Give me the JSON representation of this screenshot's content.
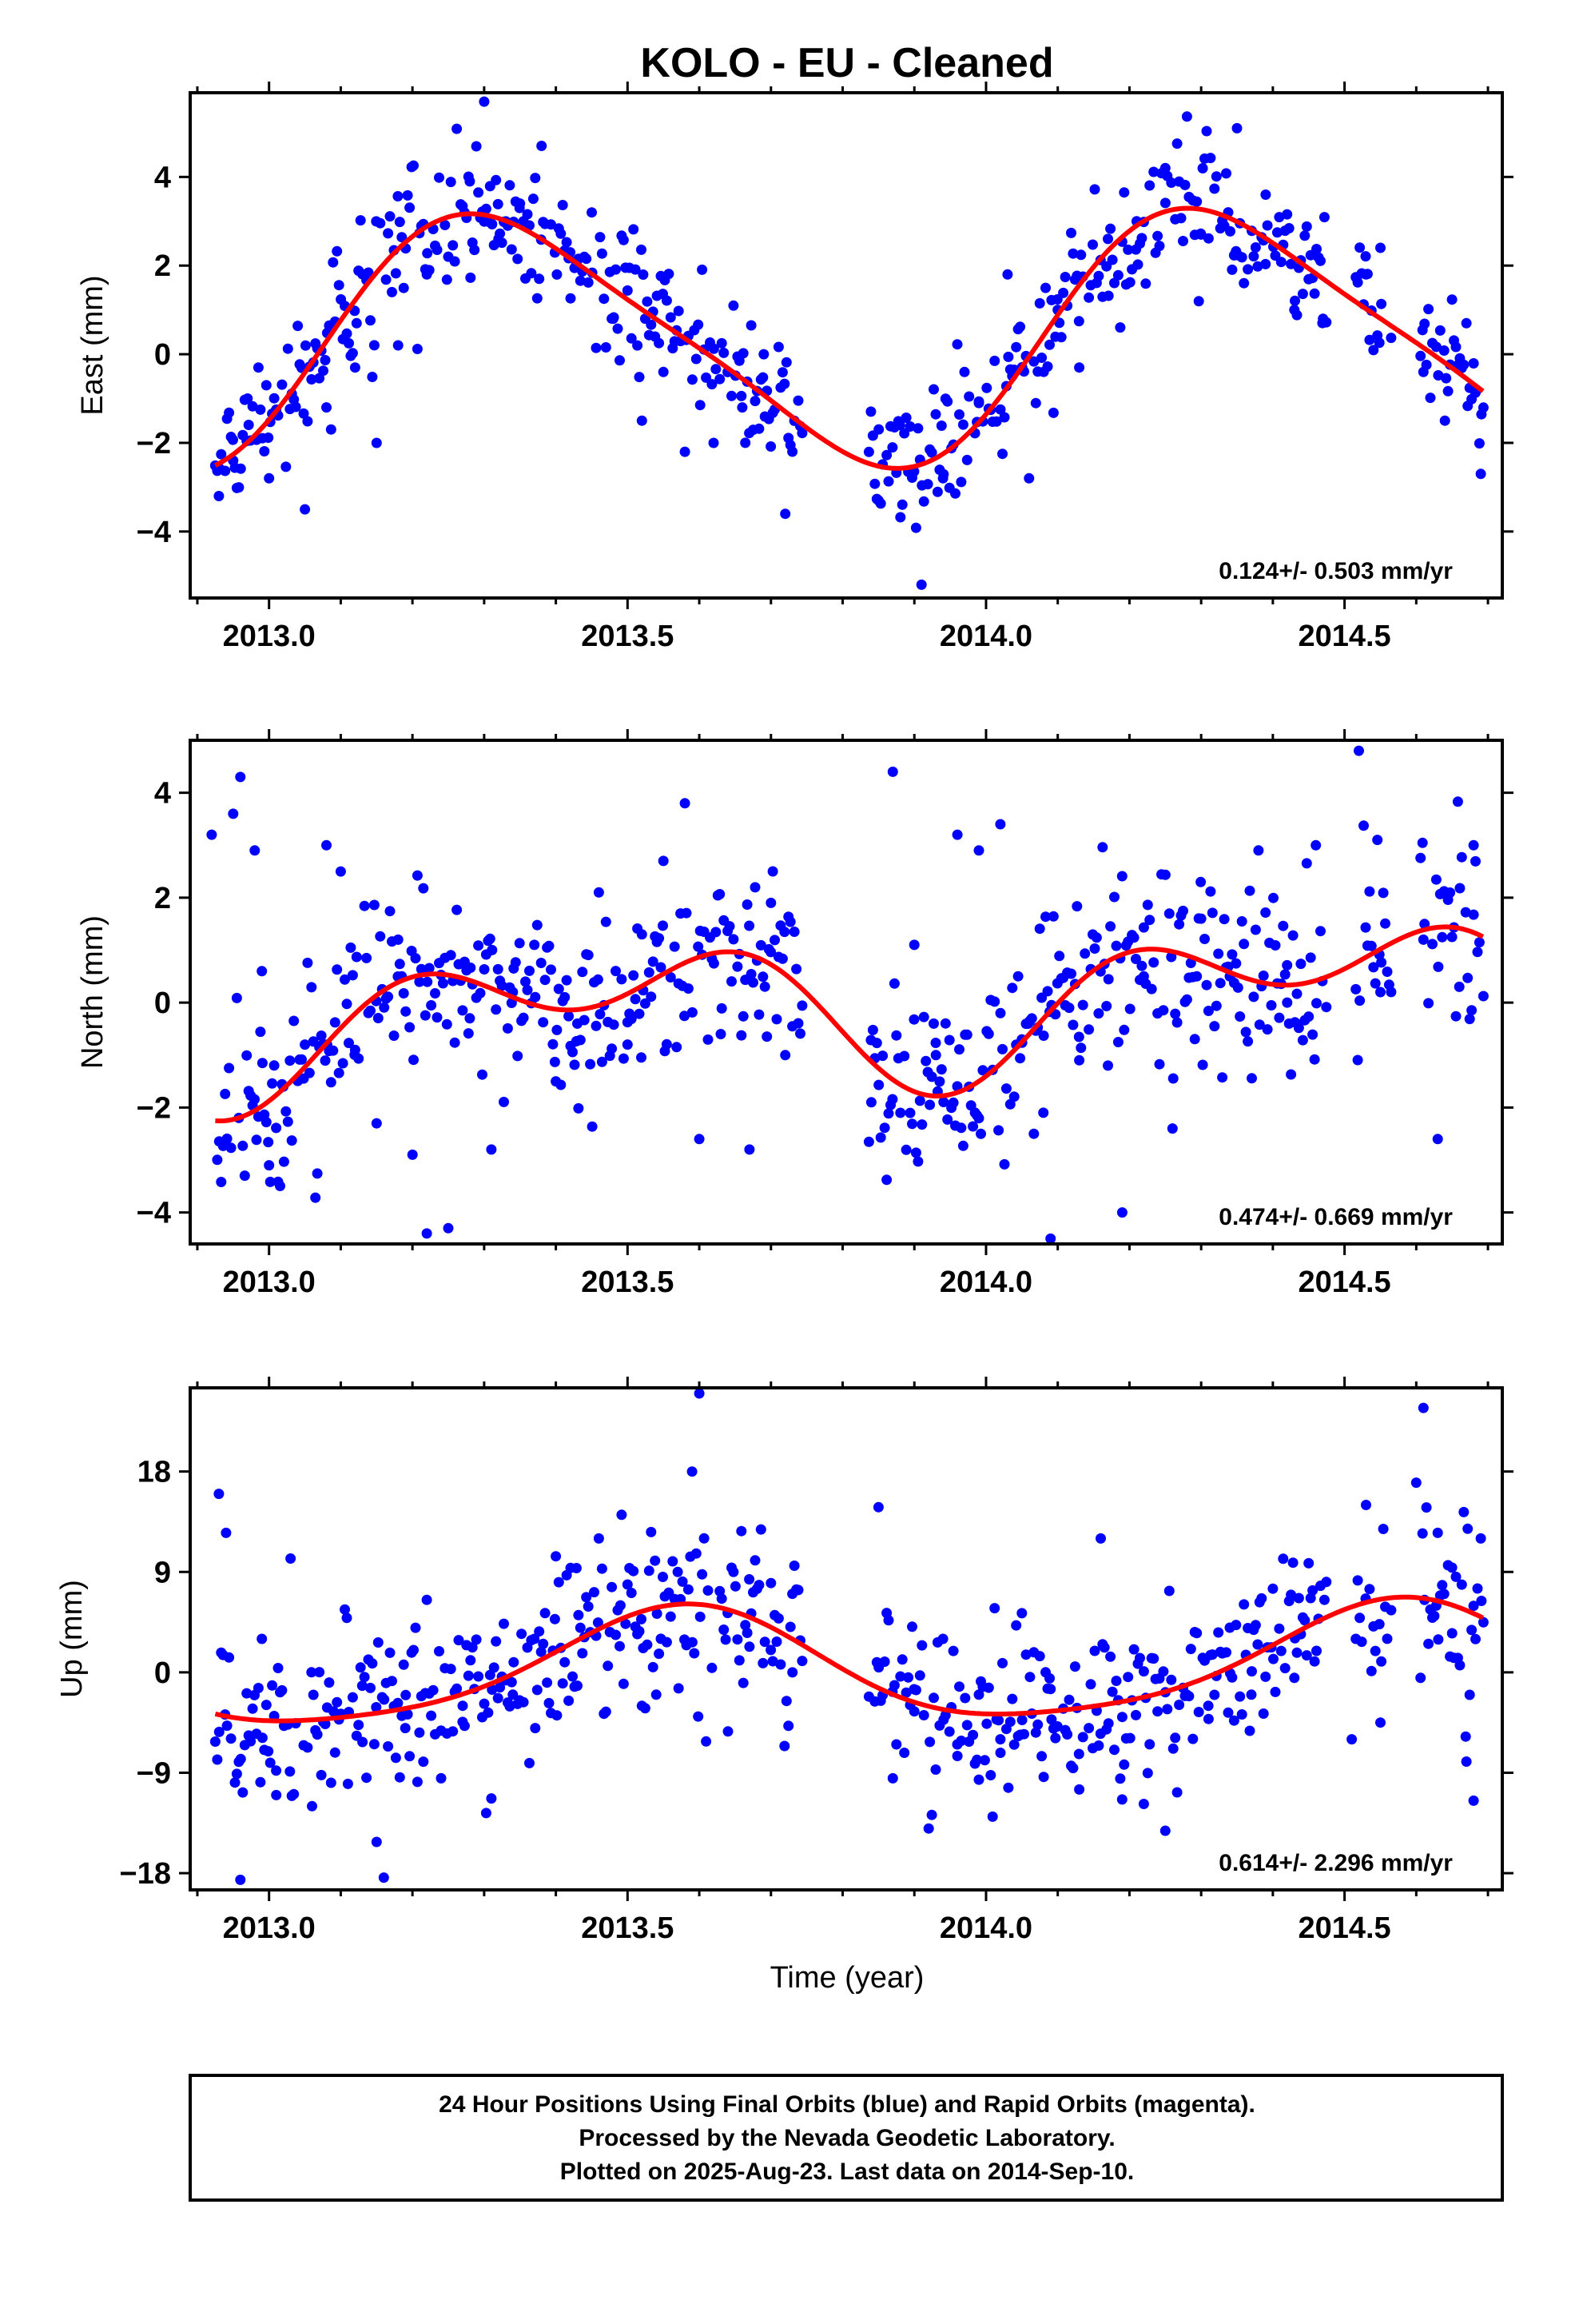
{
  "chart_data": {
    "type": "scatter",
    "title": "KOLO  - EU - Cleaned",
    "xlabel": "Time (year)",
    "xlim": [
      2012.89,
      2014.72
    ],
    "xticks": [
      2013.0,
      2013.5,
      2014.0,
      2014.5
    ],
    "xtick_labels": [
      "2013.0",
      "2013.5",
      "2014.0",
      "2014.5"
    ],
    "series_colors": {
      "data": "#0000ff",
      "fit": "#ff0000"
    },
    "panels": [
      {
        "ylabel": "East (mm)",
        "ylim": [
          -5.5,
          5.9
        ],
        "yticks": [
          4,
          2,
          0,
          -2,
          -4
        ],
        "ytick_labels": [
          "4",
          "2",
          "0",
          "−2",
          "−4"
        ],
        "rate_text": "0.124+/- 0.503 mm/yr",
        "fit": {
          "offset": 0.35,
          "slope": 0.124,
          "t0": 2013.8,
          "amp1": 2.75,
          "peak1": 2013.33,
          "amp2": 0.5,
          "phase2": 2013.2
        },
        "noise": 0.75,
        "scatter": [
          [
            2012.93,
            -3.2
          ],
          [
            2012.95,
            -2.4
          ],
          [
            2012.97,
            -1.0
          ],
          [
            2013.0,
            -2.8
          ],
          [
            2013.05,
            -3.5
          ],
          [
            2013.08,
            -1.2
          ],
          [
            2013.12,
            -0.3
          ],
          [
            2013.15,
            -2.0
          ],
          [
            2013.18,
            0.2
          ],
          [
            2013.22,
            1.8
          ],
          [
            2013.25,
            2.2
          ],
          [
            2013.28,
            3.9
          ],
          [
            2013.3,
            5.7
          ],
          [
            2013.32,
            2.6
          ],
          [
            2013.35,
            3.4
          ],
          [
            2013.38,
            4.7
          ],
          [
            2013.42,
            2.3
          ],
          [
            2013.45,
            3.2
          ],
          [
            2013.48,
            0.8
          ],
          [
            2013.52,
            -1.5
          ],
          [
            2013.55,
            -0.4
          ],
          [
            2013.58,
            -2.2
          ],
          [
            2013.62,
            -2.0
          ],
          [
            2013.66,
            -1.2
          ],
          [
            2013.69,
            0.0
          ],
          [
            2013.72,
            -3.6
          ],
          [
            2013.85,
            -3.3
          ],
          [
            2013.88,
            -1.6
          ],
          [
            2013.91,
            -5.2
          ],
          [
            2013.94,
            -2.8
          ],
          [
            2013.97,
            -0.4
          ],
          [
            2013.99,
            -1.1
          ],
          [
            2014.03,
            1.8
          ],
          [
            2014.06,
            -2.8
          ],
          [
            2014.1,
            1.0
          ],
          [
            2014.13,
            -0.3
          ],
          [
            2014.17,
            2.6
          ],
          [
            2014.21,
            3.0
          ],
          [
            2014.25,
            4.2
          ],
          [
            2014.3,
            2.7
          ],
          [
            2014.35,
            5.1
          ],
          [
            2014.39,
            3.6
          ],
          [
            2014.43,
            1.0
          ],
          [
            2014.47,
            0.8
          ],
          [
            2014.53,
            1.8
          ],
          [
            2014.55,
            2.4
          ],
          [
            2014.61,
            -0.4
          ],
          [
            2014.64,
            -1.5
          ],
          [
            2014.67,
            0.7
          ],
          [
            2014.69,
            -2.7
          ]
        ]
      },
      {
        "ylabel": "North (mm)",
        "ylim": [
          -4.6,
          5.0
        ],
        "yticks": [
          4,
          2,
          0,
          -2,
          -4
        ],
        "ytick_labels": [
          "4",
          "2",
          "0",
          "−2",
          "−4"
        ],
        "rate_text": "0.474+/- 0.669 mm/yr",
        "fit": {
          "offset": -0.05,
          "slope": 0.474,
          "t0": 2013.8,
          "amp1": 0.95,
          "peak1": 2013.45,
          "amp2": 0.85,
          "phase2": 2013.18
        },
        "noise": 0.9,
        "scatter": [
          [
            2012.92,
            3.2
          ],
          [
            2012.95,
            3.6
          ],
          [
            2012.96,
            4.3
          ],
          [
            2012.98,
            2.9
          ],
          [
            2012.99,
            0.6
          ],
          [
            2013.0,
            -3.1
          ],
          [
            2013.02,
            -1.6
          ],
          [
            2013.05,
            -0.8
          ],
          [
            2013.08,
            3.0
          ],
          [
            2013.1,
            2.5
          ],
          [
            2013.12,
            -0.9
          ],
          [
            2013.15,
            -2.3
          ],
          [
            2013.18,
            1.2
          ],
          [
            2013.2,
            -2.9
          ],
          [
            2013.22,
            -4.4
          ],
          [
            2013.25,
            -4.3
          ],
          [
            2013.28,
            -0.3
          ],
          [
            2013.31,
            -2.8
          ],
          [
            2013.34,
            0.2
          ],
          [
            2013.37,
            1.1
          ],
          [
            2013.4,
            -1.5
          ],
          [
            2013.43,
            -0.4
          ],
          [
            2013.46,
            2.1
          ],
          [
            2013.5,
            -0.8
          ],
          [
            2013.52,
            1.3
          ],
          [
            2013.55,
            2.7
          ],
          [
            2013.58,
            3.8
          ],
          [
            2013.6,
            -2.6
          ],
          [
            2013.63,
            -0.6
          ],
          [
            2013.67,
            -2.8
          ],
          [
            2013.7,
            1.9
          ],
          [
            2013.72,
            -1.0
          ],
          [
            2013.84,
            -1.9
          ],
          [
            2013.87,
            4.4
          ],
          [
            2013.9,
            1.1
          ],
          [
            2013.93,
            -1.0
          ],
          [
            2013.96,
            3.2
          ],
          [
            2013.99,
            2.9
          ],
          [
            2014.02,
            3.4
          ],
          [
            2014.05,
            -0.7
          ],
          [
            2014.08,
            -2.1
          ],
          [
            2014.09,
            -4.5
          ],
          [
            2014.13,
            -1.1
          ],
          [
            2014.17,
            -1.2
          ],
          [
            2014.19,
            -4.0
          ],
          [
            2014.22,
            0.5
          ],
          [
            2014.26,
            -2.4
          ],
          [
            2014.3,
            1.6
          ],
          [
            2014.34,
            0.5
          ],
          [
            2014.38,
            2.9
          ],
          [
            2014.42,
            0.0
          ],
          [
            2014.46,
            3.0
          ],
          [
            2014.52,
            4.8
          ],
          [
            2014.55,
            0.2
          ],
          [
            2014.61,
            1.2
          ],
          [
            2014.63,
            -2.6
          ],
          [
            2014.66,
            0.3
          ],
          [
            2014.68,
            3.0
          ]
        ]
      },
      {
        "ylabel": "Up (mm)",
        "ylim": [
          -19.5,
          25.5
        ],
        "yticks": [
          18,
          9,
          0,
          -9,
          -18
        ],
        "ytick_labels": [
          "18",
          "9",
          "0",
          "−9",
          "−18"
        ],
        "rate_text": "0.614+/- 2.296 mm/yr",
        "fit": {
          "offset": 0.4,
          "slope": 0.614,
          "t0": 2013.8,
          "amp1": 5.0,
          "peak1": 2013.57,
          "amp2": 0.9,
          "phase2": 2013.1
        },
        "noise": 4.0,
        "scatter": [
          [
            2012.93,
            16.0
          ],
          [
            2012.94,
            12.5
          ],
          [
            2012.96,
            -18.6
          ],
          [
            2012.99,
            3.0
          ],
          [
            2013.01,
            -11.0
          ],
          [
            2013.03,
            10.2
          ],
          [
            2013.06,
            -12.0
          ],
          [
            2013.09,
            -3.5
          ],
          [
            2013.11,
            -10.0
          ],
          [
            2013.13,
            -1.2
          ],
          [
            2013.15,
            -15.2
          ],
          [
            2013.16,
            -18.4
          ],
          [
            2013.19,
            -5.0
          ],
          [
            2013.22,
            6.5
          ],
          [
            2013.24,
            -9.5
          ],
          [
            2013.27,
            -3.0
          ],
          [
            2013.31,
            -11.3
          ],
          [
            2013.34,
            -2.0
          ],
          [
            2013.37,
            3.0
          ],
          [
            2013.4,
            10.4
          ],
          [
            2013.43,
            -1.2
          ],
          [
            2013.46,
            12.0
          ],
          [
            2013.49,
            6.0
          ],
          [
            2013.52,
            -3.0
          ],
          [
            2013.54,
            -2.0
          ],
          [
            2013.57,
            9.0
          ],
          [
            2013.59,
            18.0
          ],
          [
            2013.6,
            25.0
          ],
          [
            2013.64,
            -5.3
          ],
          [
            2013.67,
            2.3
          ],
          [
            2013.7,
            8.0
          ],
          [
            2013.73,
            0.0
          ],
          [
            2013.85,
            14.8
          ],
          [
            2013.87,
            -9.5
          ],
          [
            2013.9,
            -3.5
          ],
          [
            2013.92,
            -14.0
          ],
          [
            2013.94,
            3.0
          ],
          [
            2013.96,
            -7.5
          ],
          [
            2013.99,
            -2.0
          ],
          [
            2014.02,
            -6.0
          ],
          [
            2014.05,
            5.3
          ],
          [
            2014.09,
            -1.5
          ],
          [
            2014.13,
            -10.5
          ],
          [
            2014.16,
            12.0
          ],
          [
            2014.19,
            -4.0
          ],
          [
            2014.22,
            -11.8
          ],
          [
            2014.25,
            -14.2
          ],
          [
            2014.28,
            -2.0
          ],
          [
            2014.31,
            -3.0
          ],
          [
            2014.34,
            4.0
          ],
          [
            2014.37,
            -2.0
          ],
          [
            2014.4,
            7.5
          ],
          [
            2014.43,
            -0.5
          ],
          [
            2014.51,
            -6.0
          ],
          [
            2014.53,
            15.0
          ],
          [
            2014.55,
            -4.5
          ],
          [
            2014.6,
            17.0
          ],
          [
            2014.61,
            23.7
          ],
          [
            2014.63,
            12.5
          ],
          [
            2014.65,
            3.5
          ],
          [
            2014.67,
            -8.0
          ],
          [
            2014.68,
            -11.5
          ],
          [
            2014.69,
            12.0
          ]
        ]
      }
    ]
  },
  "footer": {
    "line1": "24 Hour Positions Using Final Orbits (blue) and Rapid Orbits (magenta).",
    "line2": "Processed by the Nevada Geodetic Laboratory.",
    "line3": "Plotted on 2025-Aug-23. Last data on 2014-Sep-10."
  }
}
